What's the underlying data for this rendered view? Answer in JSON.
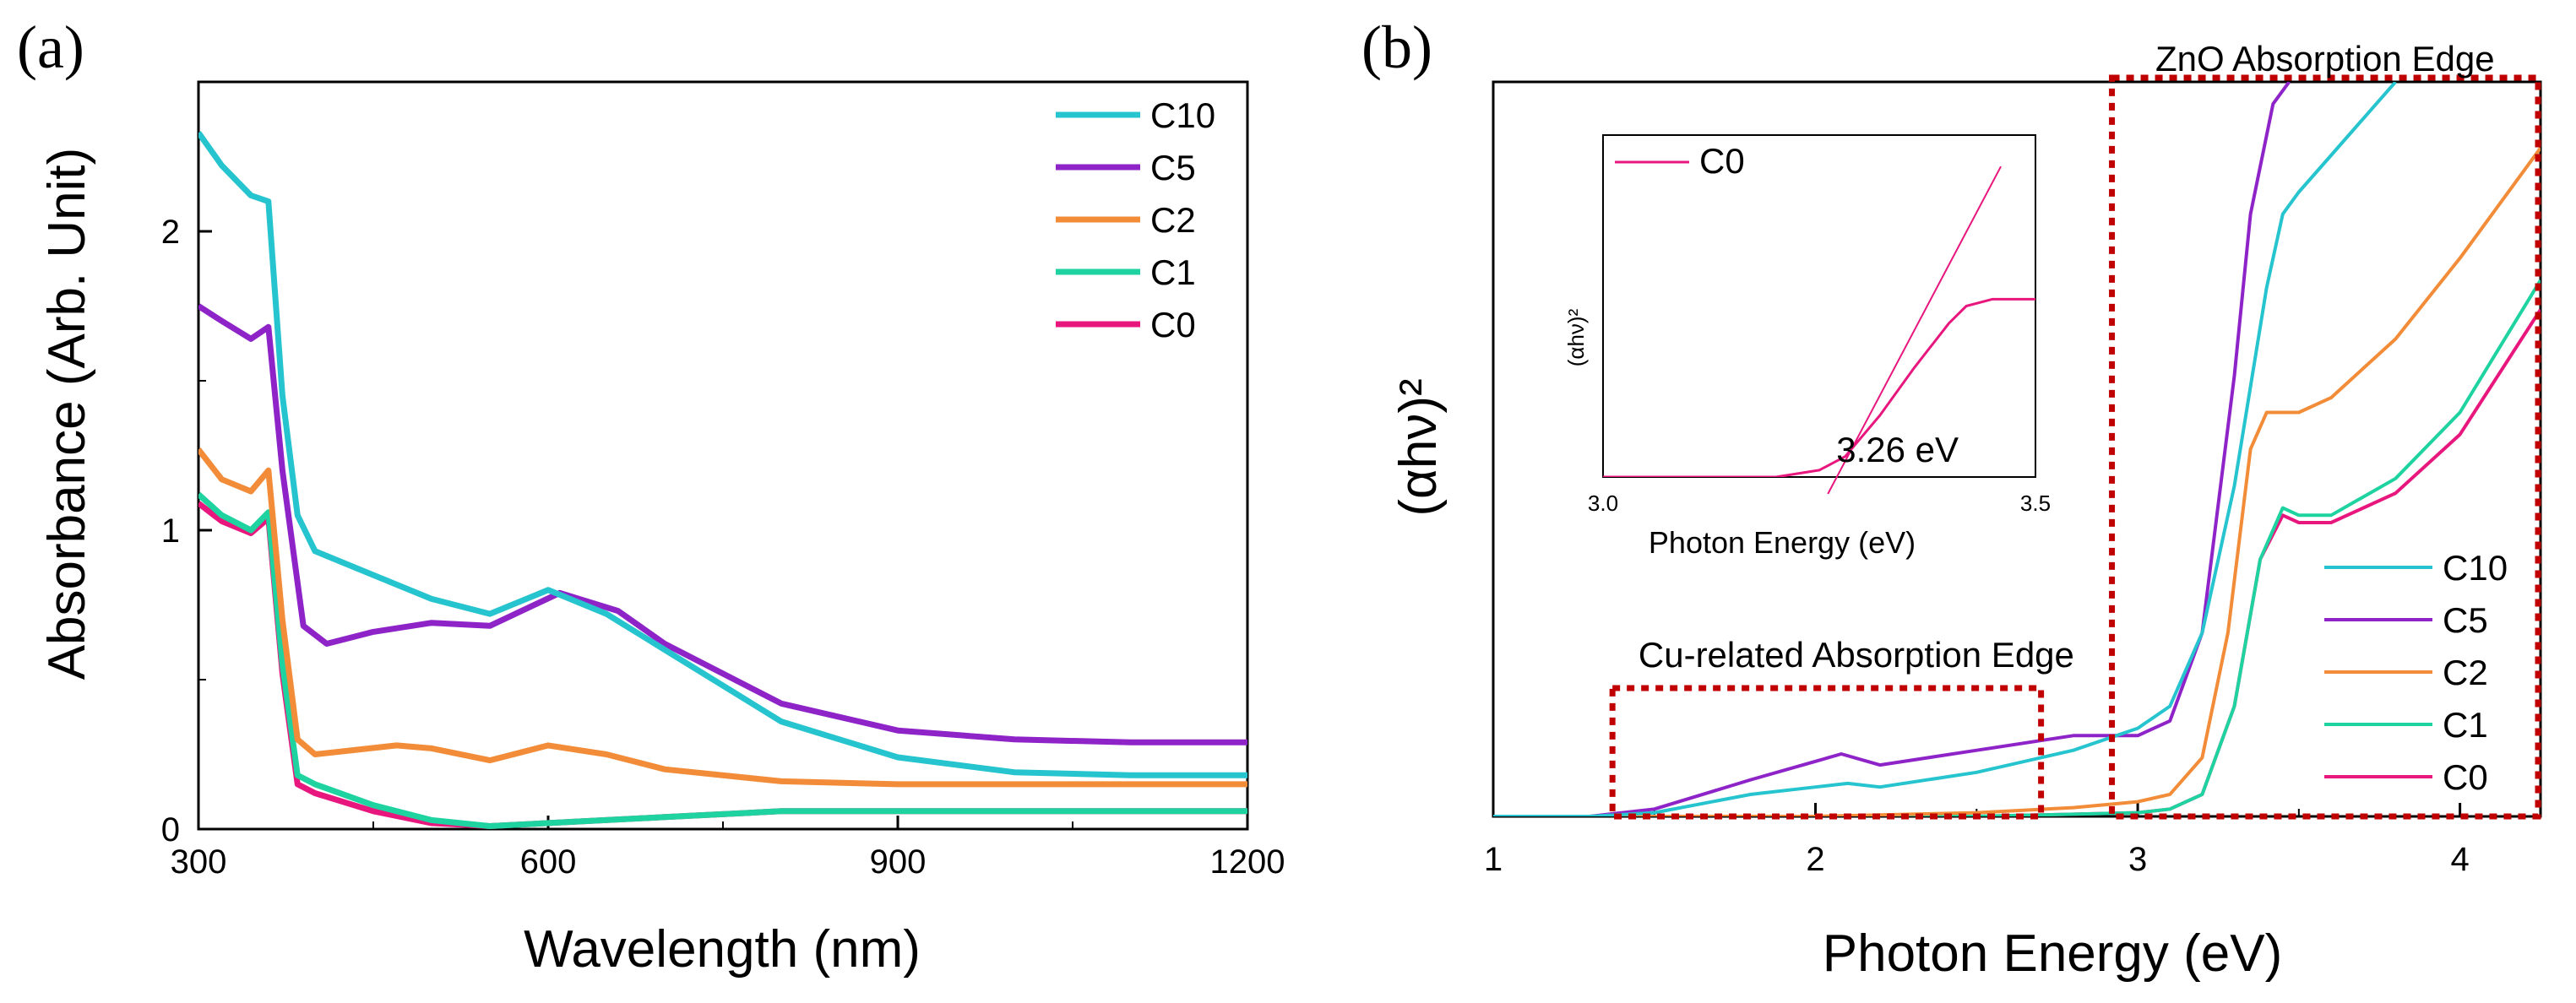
{
  "chart_data": [
    {
      "panel": "(a)",
      "type": "line",
      "xlabel": "Wavelength (nm)",
      "ylabel": "Absorbance (Arb. Unit)",
      "xlim": [
        300,
        1200
      ],
      "ylim": [
        0,
        2.5
      ],
      "xticks": [
        300,
        600,
        900,
        1200
      ],
      "yticks": [
        0,
        1,
        2
      ],
      "xtick_labels": [
        "300",
        "600",
        "900",
        "1200"
      ],
      "ytick_labels": [
        "0",
        "1",
        "2"
      ],
      "legend": [
        "C10",
        "C5",
        "C2",
        "C1",
        "C0"
      ],
      "legend_position": "top-right",
      "series": [
        {
          "name": "C10",
          "color": "#26C4CE",
          "x": [
            300,
            320,
            345,
            360,
            372,
            385,
            400,
            450,
            500,
            550,
            600,
            650,
            700,
            800,
            900,
            1000,
            1100,
            1200
          ],
          "y": [
            2.33,
            2.22,
            2.12,
            2.1,
            1.45,
            1.05,
            0.93,
            0.85,
            0.77,
            0.72,
            0.8,
            0.72,
            0.6,
            0.36,
            0.24,
            0.19,
            0.18,
            0.18
          ]
        },
        {
          "name": "C5",
          "color": "#8E24C8",
          "x": [
            300,
            320,
            345,
            360,
            372,
            390,
            410,
            450,
            500,
            550,
            610,
            660,
            700,
            800,
            900,
            1000,
            1100,
            1200
          ],
          "y": [
            1.75,
            1.7,
            1.64,
            1.68,
            1.2,
            0.68,
            0.62,
            0.66,
            0.69,
            0.68,
            0.79,
            0.73,
            0.62,
            0.42,
            0.33,
            0.3,
            0.29,
            0.29
          ]
        },
        {
          "name": "C2",
          "color": "#F28C38",
          "x": [
            300,
            320,
            345,
            360,
            372,
            385,
            400,
            470,
            500,
            550,
            600,
            650,
            700,
            800,
            900,
            1000,
            1100,
            1200
          ],
          "y": [
            1.27,
            1.17,
            1.13,
            1.2,
            0.7,
            0.3,
            0.25,
            0.28,
            0.27,
            0.23,
            0.28,
            0.25,
            0.2,
            0.16,
            0.15,
            0.15,
            0.15,
            0.15
          ]
        },
        {
          "name": "C1",
          "color": "#1ED3A0",
          "x": [
            300,
            320,
            345,
            360,
            372,
            385,
            400,
            450,
            500,
            550,
            600,
            700,
            800,
            900,
            1000,
            1100,
            1200
          ],
          "y": [
            1.12,
            1.05,
            1.0,
            1.06,
            0.55,
            0.18,
            0.15,
            0.08,
            0.03,
            0.01,
            0.02,
            0.04,
            0.06,
            0.06,
            0.06,
            0.06,
            0.06
          ]
        },
        {
          "name": "C0",
          "color": "#E8177E",
          "x": [
            300,
            320,
            345,
            360,
            372,
            385,
            400,
            450,
            500,
            550,
            600,
            700,
            800,
            900,
            1000,
            1100,
            1200
          ],
          "y": [
            1.09,
            1.03,
            0.99,
            1.04,
            0.52,
            0.15,
            0.12,
            0.06,
            0.02,
            0.01,
            0.02,
            0.04,
            0.06,
            0.06,
            0.06,
            0.06,
            0.06
          ]
        }
      ]
    },
    {
      "panel": "(b)",
      "type": "line",
      "xlabel": "Photon Energy (eV)",
      "ylabel": "(αhν)²",
      "xlim": [
        1.0,
        4.25
      ],
      "ylim": [
        0,
        1.0
      ],
      "xticks": [
        1,
        2,
        3,
        4
      ],
      "xtick_labels": [
        "1",
        "2",
        "3",
        "4"
      ],
      "legend": [
        "C10",
        "C5",
        "C2",
        "C1",
        "C0"
      ],
      "legend_position": "bottom-right",
      "annotations": {
        "zno_box_label": "ZnO Absorption Edge",
        "zno_box_range_ev": [
          2.92,
          4.25
        ],
        "cu_box_label": "Cu-related Absorption Edge",
        "cu_box_range_ev": [
          1.37,
          2.7
        ]
      },
      "series": [
        {
          "name": "C10",
          "color": "#26C4CE",
          "x": [
            1.0,
            1.3,
            1.5,
            1.8,
            2.0,
            2.1,
            2.2,
            2.5,
            2.8,
            3.0,
            3.1,
            3.2,
            3.3,
            3.4,
            3.45,
            3.5,
            3.6,
            3.8
          ],
          "y": [
            0.0,
            0.0,
            0.005,
            0.03,
            0.04,
            0.045,
            0.04,
            0.06,
            0.09,
            0.12,
            0.15,
            0.25,
            0.45,
            0.72,
            0.82,
            0.85,
            0.9,
            1.0
          ]
        },
        {
          "name": "C5",
          "color": "#8E24C8",
          "x": [
            1.0,
            1.3,
            1.5,
            1.8,
            2.0,
            2.08,
            2.2,
            2.5,
            2.8,
            3.0,
            3.1,
            3.2,
            3.3,
            3.35,
            3.42,
            3.47
          ],
          "y": [
            0.0,
            0.0,
            0.01,
            0.05,
            0.075,
            0.085,
            0.07,
            0.09,
            0.11,
            0.11,
            0.13,
            0.25,
            0.6,
            0.82,
            0.97,
            1.0
          ]
        },
        {
          "name": "C2",
          "color": "#F28C38",
          "x": [
            1.0,
            2.0,
            2.5,
            2.8,
            3.0,
            3.1,
            3.2,
            3.28,
            3.35,
            3.4,
            3.5,
            3.6,
            3.8,
            4.0,
            4.25
          ],
          "y": [
            0.0,
            0.0,
            0.005,
            0.012,
            0.02,
            0.03,
            0.08,
            0.25,
            0.5,
            0.55,
            0.55,
            0.57,
            0.65,
            0.76,
            0.91
          ]
        },
        {
          "name": "C1",
          "color": "#1ED3A0",
          "x": [
            1.0,
            2.0,
            2.5,
            3.0,
            3.1,
            3.2,
            3.3,
            3.38,
            3.45,
            3.5,
            3.6,
            3.8,
            4.0,
            4.25
          ],
          "y": [
            0.0,
            0.0,
            0.0,
            0.005,
            0.01,
            0.03,
            0.15,
            0.35,
            0.42,
            0.41,
            0.41,
            0.46,
            0.55,
            0.73
          ]
        },
        {
          "name": "C0",
          "color": "#E8177E",
          "x": [
            1.0,
            2.0,
            2.5,
            3.0,
            3.1,
            3.2,
            3.3,
            3.38,
            3.45,
            3.5,
            3.6,
            3.8,
            4.0,
            4.25
          ],
          "y": [
            0.0,
            0.0,
            0.0,
            0.005,
            0.01,
            0.03,
            0.15,
            0.35,
            0.41,
            0.4,
            0.4,
            0.44,
            0.52,
            0.69
          ]
        }
      ],
      "inset": {
        "type": "line",
        "xlabel": "Photon Energy (eV)",
        "ylabel": "(αhν)²",
        "xlim": [
          3.0,
          3.5
        ],
        "ylim": [
          0,
          1.0
        ],
        "xtick_labels": [
          "3.0",
          "3.5"
        ],
        "legend": [
          "C0"
        ],
        "annotation": "3.26 eV",
        "series": [
          {
            "name": "C0",
            "color": "#E8177E",
            "x": [
              3.0,
              3.2,
              3.25,
              3.28,
              3.32,
              3.36,
              3.4,
              3.42,
              3.45,
              3.5
            ],
            "y": [
              0.0,
              0.0,
              0.02,
              0.06,
              0.18,
              0.32,
              0.45,
              0.5,
              0.52,
              0.52
            ]
          }
        ],
        "tangent": {
          "x": [
            3.26,
            3.46
          ],
          "y": [
            0.0,
            0.76
          ],
          "color": "#E8177E"
        }
      }
    }
  ]
}
